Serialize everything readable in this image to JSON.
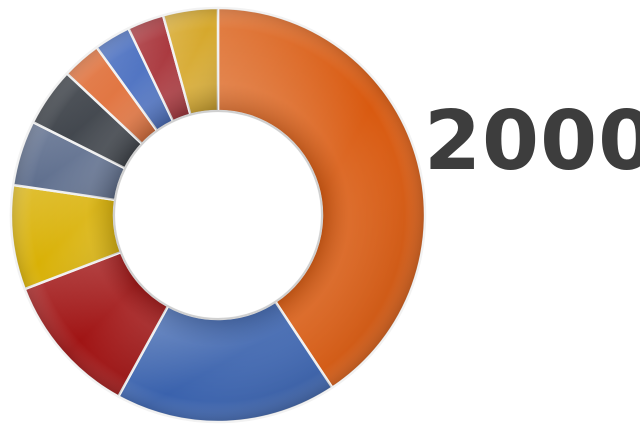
{
  "chart_data": {
    "type": "pie",
    "donut": true,
    "title": "",
    "label": "2000",
    "legend": "none",
    "slices": [
      {
        "value": 40.0,
        "color": "#d95a10"
      },
      {
        "value": 17.0,
        "color": "#3a62ad"
      },
      {
        "value": 11.0,
        "color": "#a01414"
      },
      {
        "value": 8.0,
        "color": "#d9b106"
      },
      {
        "value": 5.0,
        "color": "#5f6f8e"
      },
      {
        "value": 4.5,
        "color": "#3c4148"
      },
      {
        "value": 3.0,
        "color": "#e0703a"
      },
      {
        "value": 2.8,
        "color": "#4a6fc0"
      },
      {
        "value": 2.8,
        "color": "#a8343a"
      },
      {
        "value": 4.2,
        "color": "#d6a82c"
      }
    ]
  }
}
